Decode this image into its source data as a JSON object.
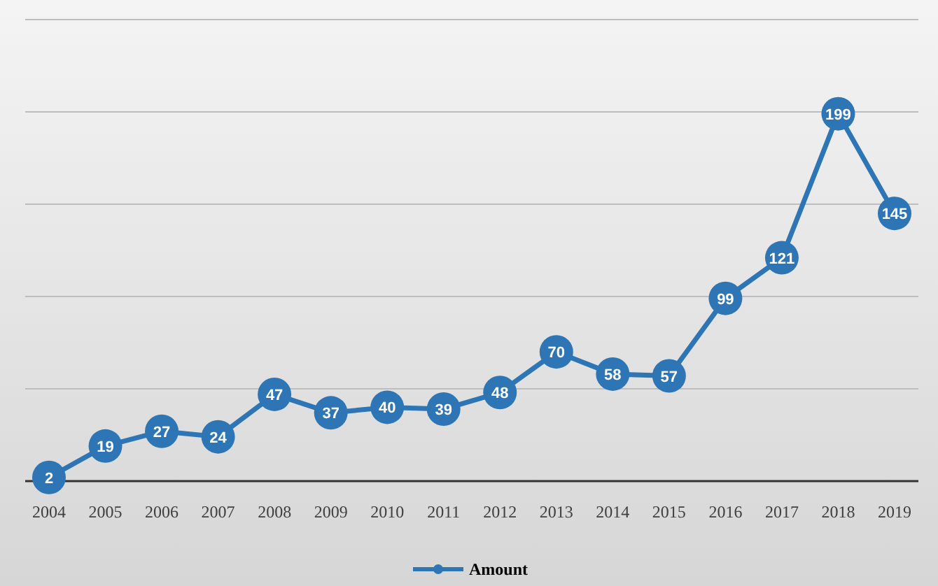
{
  "chart_data": {
    "type": "line",
    "categories": [
      "2004",
      "2005",
      "2006",
      "2007",
      "2008",
      "2009",
      "2010",
      "2011",
      "2012",
      "2013",
      "2014",
      "2015",
      "2016",
      "2017",
      "2018",
      "2019"
    ],
    "series": [
      {
        "name": "Amount",
        "color": "#2e75b6",
        "values": [
          2,
          19,
          27,
          24,
          47,
          37,
          40,
          39,
          48,
          70,
          58,
          57,
          99,
          121,
          199,
          145
        ]
      }
    ],
    "ylim": [
      0,
      250
    ],
    "yticks": [
      {
        "value": 0,
        "label": null
      },
      {
        "value": 50,
        "label": null
      },
      {
        "value": 100,
        "label": null
      },
      {
        "value": 150,
        "label": null
      },
      {
        "value": 200,
        "label": null
      },
      {
        "value": 250,
        "label": null
      }
    ],
    "tick_labels": "x",
    "grid": "y",
    "legend": "bottom",
    "marker": "circle",
    "line_style": "solid",
    "data_labels": true
  }
}
